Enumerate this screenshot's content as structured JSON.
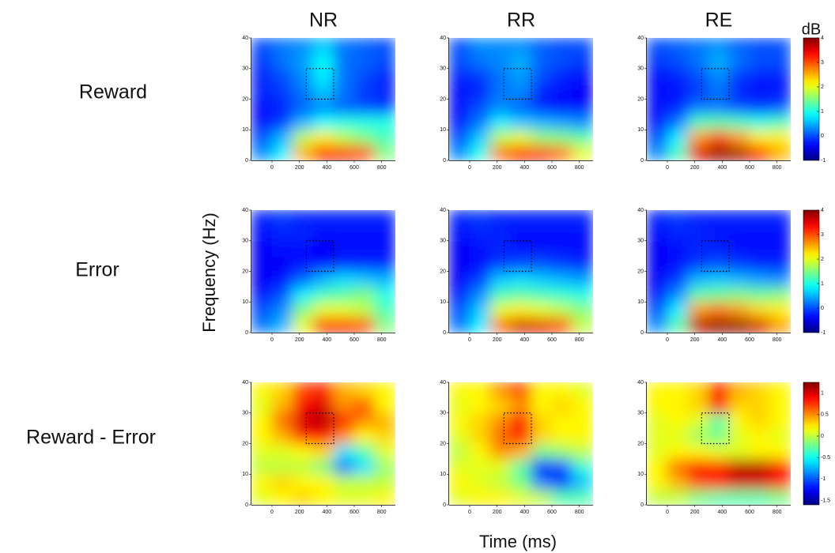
{
  "figure": {
    "columns": [
      "NR",
      "RR",
      "RE"
    ],
    "rows": [
      "Reward",
      "Error",
      "Reward - Error"
    ],
    "xlabel": "Time (ms)",
    "ylabel": "Frequency (Hz)",
    "colorbar_label": "dB",
    "colormap": "jet",
    "colorbars": [
      {
        "zlim": [
          -1,
          4
        ],
        "zticks": [
          -1,
          0,
          1,
          2,
          3,
          4
        ]
      },
      {
        "zlim": [
          -1,
          4
        ],
        "zticks": [
          -1,
          0,
          1,
          2,
          3,
          4
        ]
      },
      {
        "zlim": [
          -1.6,
          1.25
        ],
        "zticks": [
          -1.5,
          -1,
          -0.5,
          0,
          0.5,
          1
        ]
      }
    ]
  },
  "chart_data": [
    {
      "type": "heatmap",
      "x": [
        -75,
        75,
        225,
        375,
        525,
        675,
        825
      ],
      "y": [
        2.5,
        7.5,
        12.5,
        17.5,
        22.5,
        27.5,
        32.5,
        37.5
      ],
      "xlim": [
        -150,
        900
      ],
      "ylim": [
        0,
        40
      ],
      "xticks": [
        0,
        200,
        400,
        600,
        800
      ],
      "yticks": [
        0,
        10,
        20,
        30,
        40
      ],
      "roi": {
        "x": [
          250,
          450
        ],
        "y": [
          20,
          30
        ]
      },
      "z": [
        [
          0.3,
          0.8,
          2.5,
          3.3,
          3.3,
          3.0,
          1.5
        ],
        [
          0,
          0.5,
          1.8,
          2.2,
          1.8,
          1.5,
          1.2
        ],
        [
          -0.3,
          -0.1,
          0.5,
          0.9,
          1.0,
          1.0,
          1.0
        ],
        [
          -0.3,
          -0.2,
          0.1,
          0.3,
          0.1,
          0,
          -0.1
        ],
        [
          -0.2,
          -0.1,
          0.2,
          0.6,
          0.2,
          -0.1,
          -0.2
        ],
        [
          -0.2,
          0,
          0.3,
          0.8,
          0.2,
          0,
          -0.2
        ],
        [
          -0.1,
          0.2,
          0.4,
          0.9,
          0.2,
          0.1,
          0
        ],
        [
          0,
          0.2,
          0.3,
          0.6,
          0.2,
          0.1,
          0
        ]
      ]
    },
    {
      "type": "heatmap",
      "x": [
        -75,
        75,
        225,
        375,
        525,
        675,
        825
      ],
      "y": [
        2.5,
        7.5,
        12.5,
        17.5,
        22.5,
        27.5,
        32.5,
        37.5
      ],
      "xlim": [
        -150,
        900
      ],
      "ylim": [
        0,
        40
      ],
      "xticks": [
        0,
        200,
        400,
        600,
        800
      ],
      "yticks": [
        0,
        10,
        20,
        30,
        40
      ],
      "roi": {
        "x": [
          250,
          450
        ],
        "y": [
          20,
          30
        ]
      },
      "z": [
        [
          0.3,
          1,
          2.8,
          3.3,
          3.2,
          2.8,
          2
        ],
        [
          0,
          0.6,
          1.8,
          2.0,
          1.6,
          1.5,
          1.3
        ],
        [
          -0.3,
          0.2,
          0.8,
          0.6,
          0.5,
          0.4,
          0.3
        ],
        [
          -0.3,
          0,
          0.3,
          0.1,
          -0.2,
          -0.3,
          -0.3
        ],
        [
          -0.3,
          -0.2,
          0.2,
          0.3,
          -0.2,
          -0.3,
          -0.4
        ],
        [
          -0.2,
          -0.1,
          0.2,
          0.4,
          0,
          -0.2,
          -0.3
        ],
        [
          0,
          0.2,
          0.3,
          0.5,
          0.1,
          0,
          -0.1
        ],
        [
          0,
          0.3,
          0.3,
          0.3,
          0.1,
          0,
          0
        ]
      ]
    },
    {
      "type": "heatmap",
      "x": [
        -75,
        75,
        225,
        375,
        525,
        675,
        825
      ],
      "y": [
        2.5,
        7.5,
        12.5,
        17.5,
        22.5,
        27.5,
        32.5,
        37.5
      ],
      "xlim": [
        -150,
        900
      ],
      "ylim": [
        0,
        40
      ],
      "xticks": [
        0,
        200,
        400,
        600,
        800
      ],
      "yticks": [
        0,
        10,
        20,
        30,
        40
      ],
      "roi": {
        "x": [
          250,
          450
        ],
        "y": [
          20,
          30
        ]
      },
      "z": [
        [
          0.3,
          1.2,
          3.5,
          3.9,
          3.8,
          3.3,
          2.5
        ],
        [
          0,
          0.8,
          2.6,
          3.0,
          2.6,
          2.2,
          2.2
        ],
        [
          -0.3,
          0.2,
          1.2,
          1.3,
          1.2,
          1.0,
          1.2
        ],
        [
          -0.3,
          -0.2,
          0.2,
          0.2,
          0,
          -0.1,
          0
        ],
        [
          -0.3,
          -0.3,
          -0.1,
          0.2,
          -0.2,
          -0.3,
          -0.3
        ],
        [
          -0.3,
          -0.2,
          0,
          0.3,
          -0.1,
          -0.2,
          -0.2
        ],
        [
          -0.1,
          0,
          0.2,
          0.5,
          0.2,
          0,
          0
        ],
        [
          0,
          0.1,
          0.2,
          0.3,
          0.1,
          0,
          0
        ]
      ]
    },
    {
      "type": "heatmap",
      "x": [
        -75,
        75,
        225,
        375,
        525,
        675,
        825
      ],
      "y": [
        2.5,
        7.5,
        12.5,
        17.5,
        22.5,
        27.5,
        32.5,
        37.5
      ],
      "xlim": [
        -150,
        900
      ],
      "ylim": [
        0,
        40
      ],
      "xticks": [
        0,
        200,
        400,
        600,
        800
      ],
      "yticks": [
        0,
        10,
        20,
        30,
        40
      ],
      "roi": {
        "x": [
          250,
          450
        ],
        "y": [
          20,
          30
        ]
      },
      "z": [
        [
          0.2,
          0.5,
          2.0,
          3.2,
          3.3,
          3.0,
          1.5
        ],
        [
          0,
          0.3,
          1.5,
          2.0,
          2.0,
          1.8,
          1.2
        ],
        [
          -0.3,
          0,
          0.8,
          1.2,
          1.3,
          1.5,
          1.0
        ],
        [
          -0.4,
          -0.3,
          0.1,
          0.5,
          0.7,
          0.6,
          0.5
        ],
        [
          -0.4,
          -0.4,
          -0.3,
          -0.3,
          -0.2,
          -0.2,
          -0.2
        ],
        [
          -0.4,
          -0.3,
          -0.3,
          -0.4,
          -0.3,
          -0.3,
          -0.3
        ],
        [
          -0.3,
          -0.2,
          -0.2,
          -0.3,
          -0.3,
          -0.3,
          -0.3
        ],
        [
          -0.2,
          -0.1,
          -0.2,
          -0.2,
          -0.2,
          -0.2,
          -0.2
        ]
      ]
    },
    {
      "type": "heatmap",
      "x": [
        -75,
        75,
        225,
        375,
        525,
        675,
        825
      ],
      "y": [
        2.5,
        7.5,
        12.5,
        17.5,
        22.5,
        27.5,
        32.5,
        37.5
      ],
      "xlim": [
        -150,
        900
      ],
      "ylim": [
        0,
        40
      ],
      "xticks": [
        0,
        200,
        400,
        600,
        800
      ],
      "yticks": [
        0,
        10,
        20,
        30,
        40
      ],
      "roi": {
        "x": [
          250,
          450
        ],
        "y": [
          20,
          30
        ]
      },
      "z": [
        [
          0.2,
          0.8,
          2.8,
          3.6,
          3.5,
          3.0,
          1.8
        ],
        [
          0,
          0.6,
          2.0,
          2.2,
          2.0,
          1.8,
          1.5
        ],
        [
          -0.3,
          0.3,
          1.2,
          1.3,
          1.2,
          1.1,
          1.0
        ],
        [
          -0.4,
          -0.1,
          0.6,
          0.7,
          0.6,
          0.5,
          0.4
        ],
        [
          -0.4,
          -0.3,
          -0.1,
          0,
          0,
          -0.1,
          -0.2
        ],
        [
          -0.4,
          -0.3,
          -0.2,
          -0.3,
          -0.3,
          -0.3,
          -0.3
        ],
        [
          -0.3,
          -0.2,
          -0.2,
          -0.3,
          -0.3,
          -0.3,
          -0.3
        ],
        [
          -0.2,
          -0.1,
          -0.2,
          -0.2,
          -0.2,
          -0.2,
          -0.2
        ]
      ]
    },
    {
      "type": "heatmap",
      "x": [
        -75,
        75,
        225,
        375,
        525,
        675,
        825
      ],
      "y": [
        2.5,
        7.5,
        12.5,
        17.5,
        22.5,
        27.5,
        32.5,
        37.5
      ],
      "xlim": [
        -150,
        900
      ],
      "ylim": [
        0,
        40
      ],
      "xticks": [
        0,
        200,
        400,
        600,
        800
      ],
      "yticks": [
        0,
        10,
        20,
        30,
        40
      ],
      "roi": {
        "x": [
          250,
          450
        ],
        "y": [
          20,
          30
        ]
      },
      "z": [
        [
          0.3,
          1.3,
          3.7,
          3.9,
          3.9,
          3.6,
          2.6
        ],
        [
          0,
          0.8,
          2.6,
          2.8,
          2.6,
          2.3,
          2.2
        ],
        [
          -0.3,
          0.3,
          1.3,
          1.4,
          1.5,
          1.4,
          1.5
        ],
        [
          -0.4,
          -0.1,
          0.5,
          0.6,
          0.5,
          0.4,
          0.3
        ],
        [
          -0.4,
          -0.3,
          -0.1,
          0,
          -0.1,
          -0.2,
          -0.2
        ],
        [
          -0.4,
          -0.3,
          -0.2,
          -0.2,
          -0.3,
          -0.3,
          -0.3
        ],
        [
          -0.3,
          -0.2,
          -0.2,
          -0.3,
          -0.3,
          -0.3,
          -0.3
        ],
        [
          -0.2,
          -0.1,
          -0.2,
          -0.2,
          -0.2,
          -0.2,
          -0.2
        ]
      ]
    },
    {
      "type": "heatmap",
      "x": [
        -75,
        75,
        225,
        375,
        525,
        675,
        825
      ],
      "y": [
        2.5,
        7.5,
        12.5,
        17.5,
        22.5,
        27.5,
        32.5,
        37.5
      ],
      "xlim": [
        -150,
        900
      ],
      "ylim": [
        0,
        40
      ],
      "xticks": [
        0,
        200,
        400,
        600,
        800
      ],
      "yticks": [
        0,
        10,
        20,
        30,
        40
      ],
      "roi": {
        "x": [
          250,
          450
        ],
        "y": [
          20,
          30
        ]
      },
      "z": [
        [
          0.1,
          0.2,
          0.3,
          0.2,
          0.1,
          0.1,
          0.2
        ],
        [
          0.2,
          0.3,
          0.2,
          0.2,
          0,
          0,
          0
        ],
        [
          0,
          0,
          0,
          -0.2,
          -0.9,
          -0.6,
          -0.1
        ],
        [
          0.1,
          0.1,
          0.2,
          0.3,
          -0.6,
          -0.3,
          0.1
        ],
        [
          0.2,
          0.4,
          0.8,
          0.9,
          0.5,
          0.2,
          0.3
        ],
        [
          0.2,
          0.6,
          1.0,
          1.1,
          0.9,
          0.5,
          0.4
        ],
        [
          0.1,
          0.4,
          0.9,
          1.0,
          0.5,
          0.7,
          0.2
        ],
        [
          0.2,
          0.3,
          0.7,
          0.8,
          0.4,
          0.3,
          0.2
        ]
      ]
    },
    {
      "type": "heatmap",
      "x": [
        -75,
        75,
        225,
        375,
        525,
        675,
        825
      ],
      "y": [
        2.5,
        7.5,
        12.5,
        17.5,
        22.5,
        27.5,
        32.5,
        37.5
      ],
      "xlim": [
        -150,
        900
      ],
      "ylim": [
        0,
        40
      ],
      "xticks": [
        0,
        200,
        400,
        600,
        800
      ],
      "yticks": [
        0,
        10,
        20,
        30,
        40
      ],
      "roi": {
        "x": [
          250,
          450
        ],
        "y": [
          20,
          30
        ]
      },
      "z": [
        [
          0.1,
          0.2,
          0.2,
          0.1,
          0,
          -0.3,
          -0.3
        ],
        [
          0.2,
          0.1,
          0,
          -0.2,
          -0.9,
          -1.1,
          -0.7
        ],
        [
          0.1,
          0.1,
          0.1,
          -0.3,
          -1.2,
          -1.0,
          -0.4
        ],
        [
          0,
          0.2,
          0.5,
          0.4,
          -0.2,
          -0.1,
          0
        ],
        [
          0.1,
          0.3,
          0.6,
          0.9,
          0.3,
          0.2,
          0.2
        ],
        [
          0.2,
          0.3,
          0.5,
          0.9,
          0.3,
          0.2,
          0.2
        ],
        [
          0.1,
          0.2,
          0.3,
          0.5,
          0.2,
          0.3,
          0.2
        ],
        [
          0.2,
          0.2,
          0.5,
          0.7,
          0.2,
          0.2,
          0.1
        ]
      ]
    },
    {
      "type": "heatmap",
      "x": [
        -75,
        75,
        225,
        375,
        525,
        675,
        825
      ],
      "y": [
        2.5,
        7.5,
        12.5,
        17.5,
        22.5,
        27.5,
        32.5,
        37.5
      ],
      "xlim": [
        -150,
        900
      ],
      "ylim": [
        0,
        40
      ],
      "xticks": [
        0,
        200,
        400,
        600,
        800
      ],
      "yticks": [
        0,
        10,
        20,
        30,
        40
      ],
      "roi": {
        "x": [
          250,
          450
        ],
        "y": [
          20,
          30
        ]
      },
      "z": [
        [
          0,
          0,
          -0.2,
          -0.3,
          -0.3,
          -0.3,
          -0.2
        ],
        [
          0.2,
          0.4,
          0.7,
          0.8,
          1.0,
          1.0,
          0.8
        ],
        [
          0.2,
          0.6,
          0.9,
          0.8,
          1.1,
          1.1,
          0.9
        ],
        [
          0.1,
          0.2,
          0.2,
          0.1,
          0.1,
          0.2,
          0.2
        ],
        [
          0.1,
          0.1,
          -0.1,
          -0.2,
          0.1,
          0.2,
          0.1
        ],
        [
          0.1,
          0.2,
          0.1,
          -0.3,
          0.2,
          0.3,
          0.2
        ],
        [
          0.2,
          0.2,
          0.3,
          0.9,
          0.3,
          0.3,
          0.2
        ],
        [
          0.2,
          0.2,
          0.3,
          0.9,
          0.4,
          0.3,
          0.2
        ]
      ]
    }
  ]
}
